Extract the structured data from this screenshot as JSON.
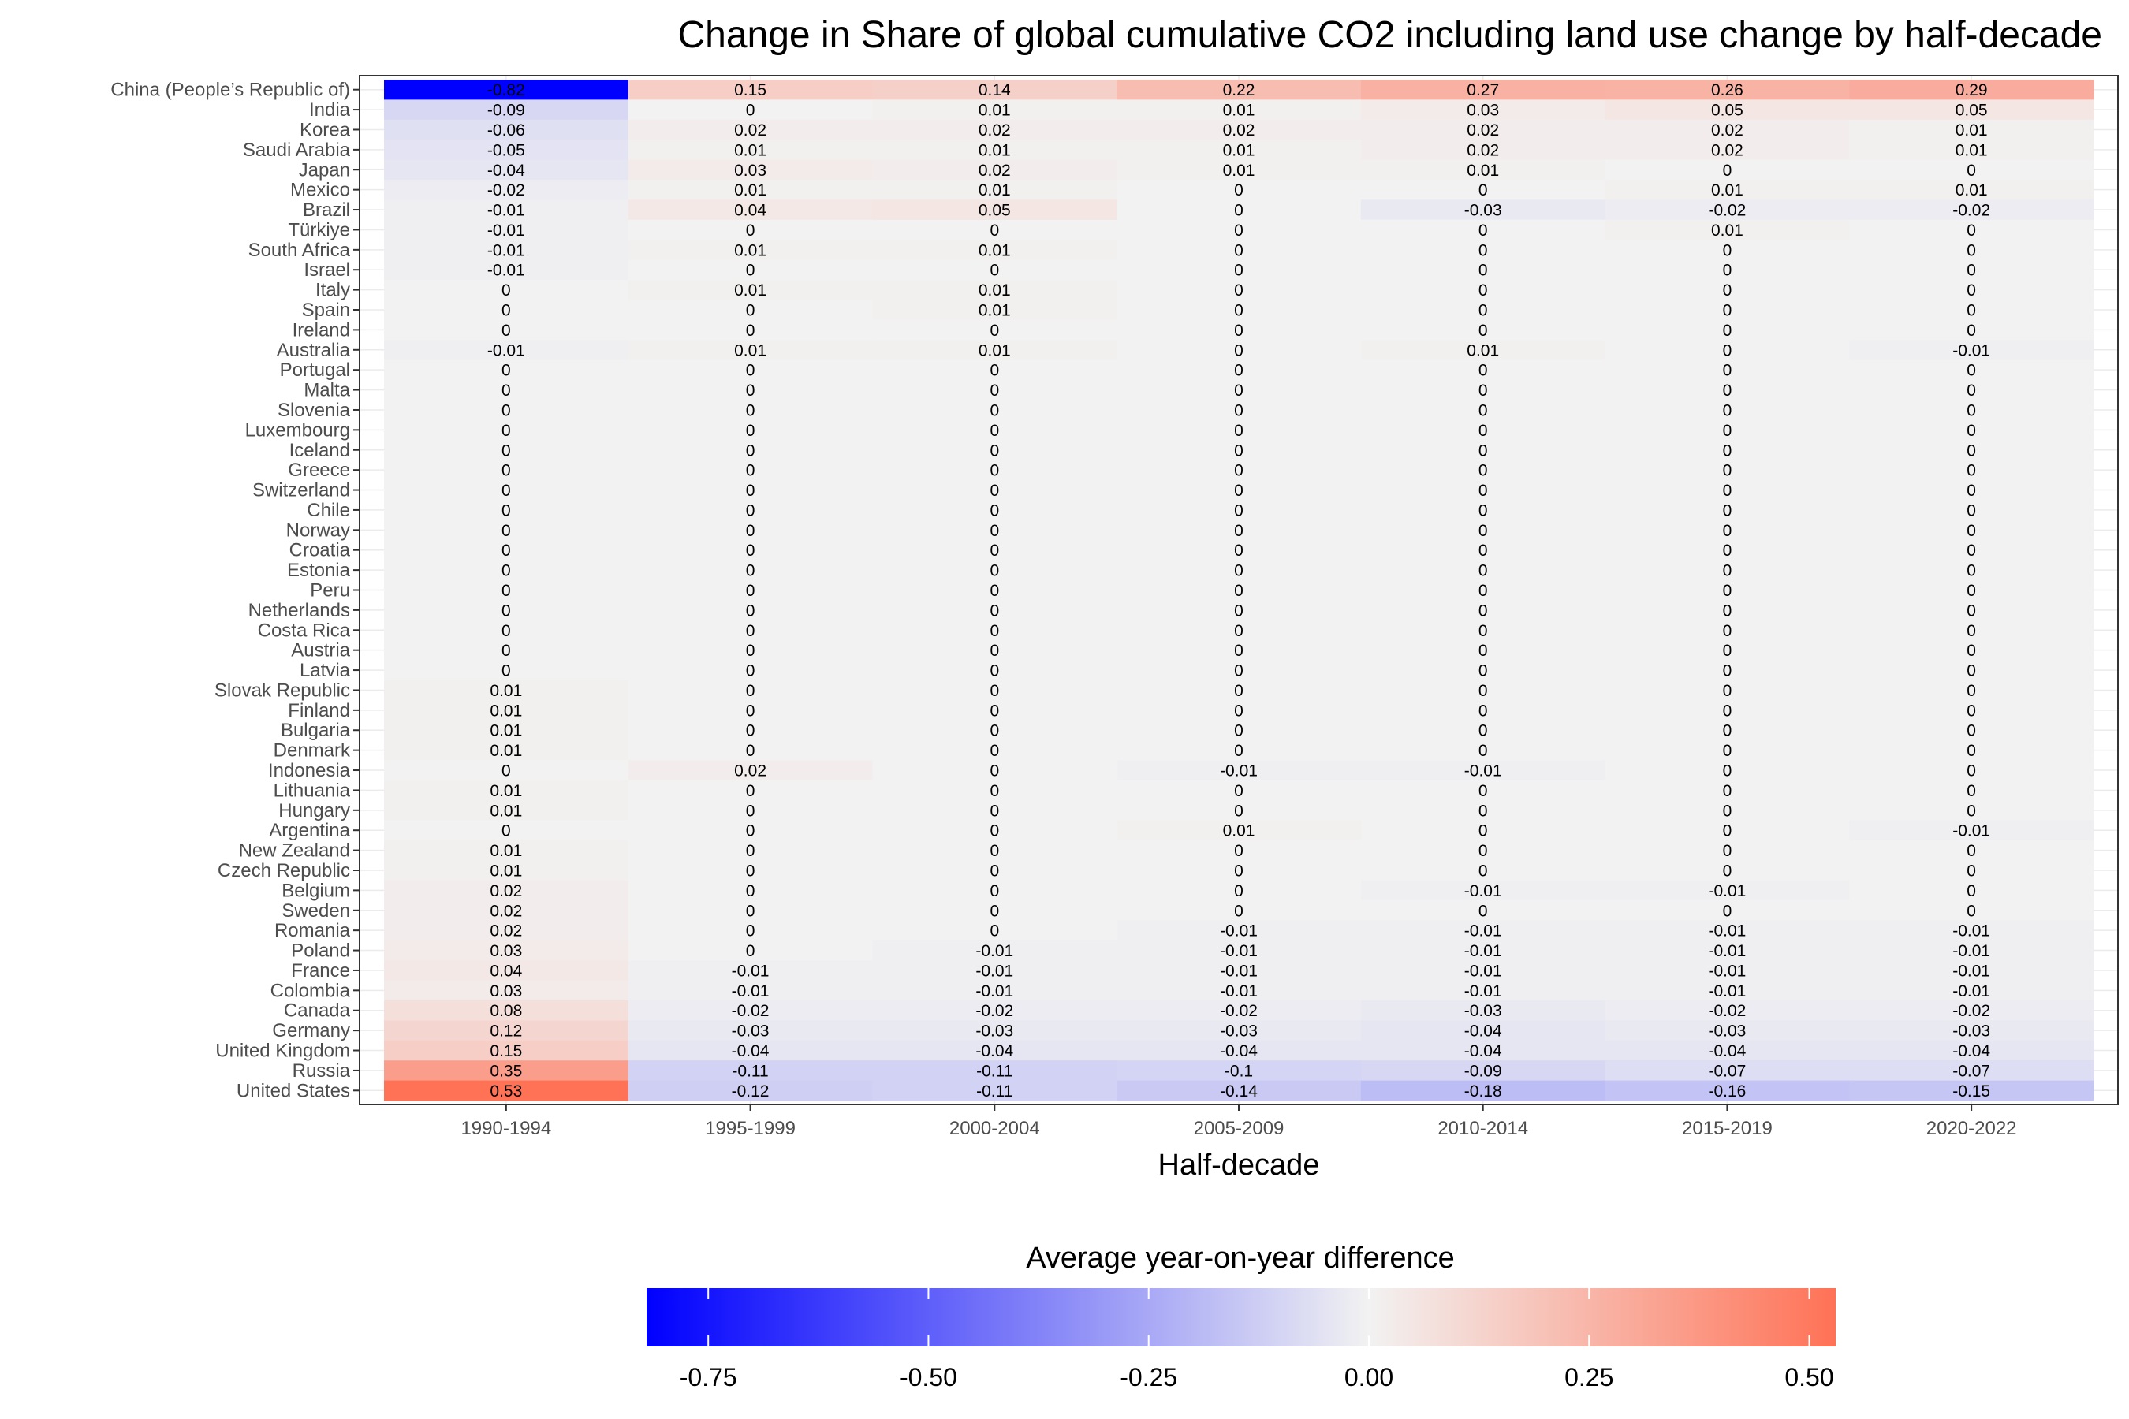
{
  "chart_data": {
    "type": "heatmap",
    "title": "Change in Share of global cumulative CO2 including land use change by half-decade",
    "xlabel": "Half-decade",
    "ylabel": "",
    "x": [
      "1990-1994",
      "1995-1999",
      "2000-2004",
      "2005-2009",
      "2010-2014",
      "2015-2019",
      "2020-2022"
    ],
    "y": [
      "China (People’s Republic of)",
      "India",
      "Korea",
      "Saudi Arabia",
      "Japan",
      "Mexico",
      "Brazil",
      "Türkiye",
      "South Africa",
      "Israel",
      "Italy",
      "Spain",
      "Ireland",
      "Australia",
      "Portugal",
      "Malta",
      "Slovenia",
      "Luxembourg",
      "Iceland",
      "Greece",
      "Switzerland",
      "Chile",
      "Norway",
      "Croatia",
      "Estonia",
      "Peru",
      "Netherlands",
      "Costa Rica",
      "Austria",
      "Latvia",
      "Slovak Republic",
      "Finland",
      "Bulgaria",
      "Denmark",
      "Indonesia",
      "Lithuania",
      "Hungary",
      "Argentina",
      "New Zealand",
      "Czech Republic",
      "Belgium",
      "Sweden",
      "Romania",
      "Poland",
      "France",
      "Colombia",
      "Canada",
      "Germany",
      "United Kingdom",
      "Russia",
      "United States"
    ],
    "values": [
      [
        -0.82,
        0.15,
        0.14,
        0.22,
        0.27,
        0.26,
        0.29
      ],
      [
        -0.09,
        0,
        0.01,
        0.01,
        0.03,
        0.05,
        0.05
      ],
      [
        -0.06,
        0.02,
        0.02,
        0.02,
        0.02,
        0.02,
        0.01
      ],
      [
        -0.05,
        0.01,
        0.01,
        0.01,
        0.02,
        0.02,
        0.01
      ],
      [
        -0.04,
        0.03,
        0.02,
        0.01,
        0.01,
        0,
        0
      ],
      [
        -0.02,
        0.01,
        0.01,
        0,
        0,
        0.01,
        0.01
      ],
      [
        -0.01,
        0.04,
        0.05,
        0,
        -0.03,
        -0.02,
        -0.02
      ],
      [
        -0.01,
        0,
        0,
        0,
        0,
        0.01,
        0
      ],
      [
        -0.01,
        0.01,
        0.01,
        0,
        0,
        0,
        0
      ],
      [
        -0.01,
        0,
        0,
        0,
        0,
        0,
        0
      ],
      [
        0,
        0.01,
        0.01,
        0,
        0,
        0,
        0
      ],
      [
        0,
        0,
        0.01,
        0,
        0,
        0,
        0
      ],
      [
        0,
        0,
        0,
        0,
        0,
        0,
        0
      ],
      [
        -0.01,
        0.01,
        0.01,
        0,
        0.01,
        0,
        -0.01
      ],
      [
        0,
        0,
        0,
        0,
        0,
        0,
        0
      ],
      [
        0,
        0,
        0,
        0,
        0,
        0,
        0
      ],
      [
        0,
        0,
        0,
        0,
        0,
        0,
        0
      ],
      [
        0,
        0,
        0,
        0,
        0,
        0,
        0
      ],
      [
        0,
        0,
        0,
        0,
        0,
        0,
        0
      ],
      [
        0,
        0,
        0,
        0,
        0,
        0,
        0
      ],
      [
        0,
        0,
        0,
        0,
        0,
        0,
        0
      ],
      [
        0,
        0,
        0,
        0,
        0,
        0,
        0
      ],
      [
        0,
        0,
        0,
        0,
        0,
        0,
        0
      ],
      [
        0,
        0,
        0,
        0,
        0,
        0,
        0
      ],
      [
        0,
        0,
        0,
        0,
        0,
        0,
        0
      ],
      [
        0,
        0,
        0,
        0,
        0,
        0,
        0
      ],
      [
        0,
        0,
        0,
        0,
        0,
        0,
        0
      ],
      [
        0,
        0,
        0,
        0,
        0,
        0,
        0
      ],
      [
        0,
        0,
        0,
        0,
        0,
        0,
        0
      ],
      [
        0,
        0,
        0,
        0,
        0,
        0,
        0
      ],
      [
        0.01,
        0,
        0,
        0,
        0,
        0,
        0
      ],
      [
        0.01,
        0,
        0,
        0,
        0,
        0,
        0
      ],
      [
        0.01,
        0,
        0,
        0,
        0,
        0,
        0
      ],
      [
        0.01,
        0,
        0,
        0,
        0,
        0,
        0
      ],
      [
        0,
        0.02,
        0,
        -0.01,
        -0.01,
        0,
        0
      ],
      [
        0.01,
        0,
        0,
        0,
        0,
        0,
        0
      ],
      [
        0.01,
        0,
        0,
        0,
        0,
        0,
        0
      ],
      [
        0,
        0,
        0,
        0.01,
        0,
        0,
        -0.01
      ],
      [
        0.01,
        0,
        0,
        0,
        0,
        0,
        0
      ],
      [
        0.01,
        0,
        0,
        0,
        0,
        0,
        0
      ],
      [
        0.02,
        0,
        0,
        0,
        -0.01,
        -0.01,
        0
      ],
      [
        0.02,
        0,
        0,
        0,
        0,
        0,
        0
      ],
      [
        0.02,
        0,
        0,
        -0.01,
        -0.01,
        -0.01,
        -0.01
      ],
      [
        0.03,
        0,
        -0.01,
        -0.01,
        -0.01,
        -0.01,
        -0.01
      ],
      [
        0.04,
        -0.01,
        -0.01,
        -0.01,
        -0.01,
        -0.01,
        -0.01
      ],
      [
        0.03,
        -0.01,
        -0.01,
        -0.01,
        -0.01,
        -0.01,
        -0.01
      ],
      [
        0.08,
        -0.02,
        -0.02,
        -0.02,
        -0.03,
        -0.02,
        -0.02
      ],
      [
        0.12,
        -0.03,
        -0.03,
        -0.03,
        -0.04,
        -0.03,
        -0.03
      ],
      [
        0.15,
        -0.04,
        -0.04,
        -0.04,
        -0.04,
        -0.04,
        -0.04
      ],
      [
        0.35,
        -0.11,
        -0.11,
        -0.1,
        -0.09,
        -0.07,
        -0.07
      ],
      [
        0.53,
        -0.12,
        -0.11,
        -0.14,
        -0.18,
        -0.16,
        -0.15
      ]
    ],
    "legend": {
      "title": "Average year-on-year difference",
      "position": "bottom",
      "range": [
        -0.82,
        0.53
      ],
      "ticks": [
        -0.75,
        -0.5,
        -0.25,
        0,
        0.25,
        0.5
      ],
      "tick_labels": [
        "-0.75",
        "-0.50",
        "-0.25",
        "0.00",
        "0.25",
        "0.50"
      ]
    },
    "colors": {
      "low": "#0000ff",
      "mid": "#f2f2f2",
      "high": "#ff7256"
    },
    "grid": true
  }
}
